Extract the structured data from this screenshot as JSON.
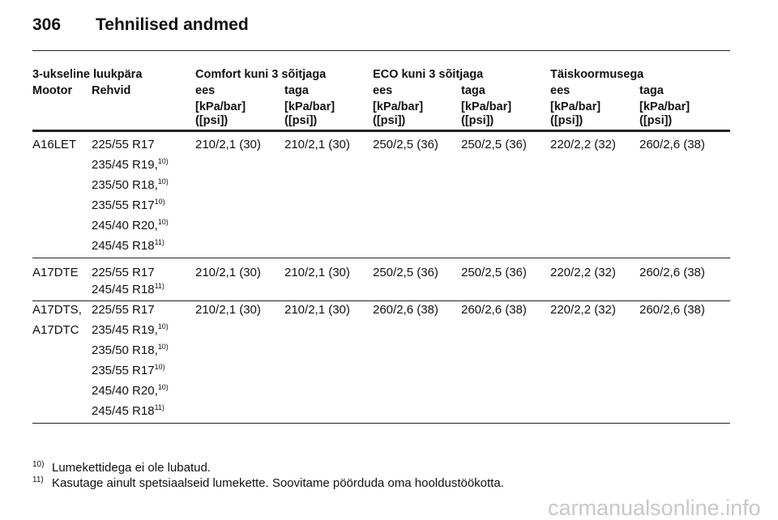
{
  "header": {
    "page_number": "306",
    "title": "Tehnilised andmed"
  },
  "table": {
    "group_headers": [
      "3-ukseline luukpära",
      "Comfort kuni 3 sõitjaga",
      "ECO kuni 3 sõitjaga",
      "Täiskoormusega"
    ],
    "columns": [
      "Mootor",
      "Rehvid",
      "ees",
      "taga",
      "ees",
      "taga",
      "ees",
      "taga"
    ],
    "units": [
      [
        "[kPa/bar]",
        "([psi])"
      ],
      [
        "[kPa/bar]",
        "([psi])"
      ],
      [
        "[kPa/bar]",
        "([psi])"
      ],
      [
        "[kPa/bar]",
        "([psi])"
      ],
      [
        "[kPa/bar]",
        "([psi])"
      ],
      [
        "[kPa/bar]",
        "([psi])"
      ]
    ],
    "groups": [
      {
        "engine": [
          "A16LET"
        ],
        "tires": [
          {
            "text": "225/55 R17"
          },
          {
            "text": "235/45 R19,",
            "note": "10)"
          },
          {
            "text": "235/50 R18,",
            "note": "10)"
          },
          {
            "text": "235/55 R17",
            "note": "10)"
          },
          {
            "text": "245/40 R20,",
            "note": "10)"
          },
          {
            "text": "245/45 R18",
            "note": "11)"
          }
        ],
        "pressures": [
          "210/2,1 (30)",
          "210/2,1 (30)",
          "250/2,5 (36)",
          "250/2,5 (36)",
          "220/2,2 (32)",
          "260/2,6 (38)"
        ]
      },
      {
        "engine": [
          "A17DTE"
        ],
        "tires": [
          {
            "text": "225/55 R17"
          },
          {
            "text": "245/45 R18",
            "note": "11)"
          }
        ],
        "pressures": [
          "210/2,1 (30)",
          "210/2,1 (30)",
          "250/2,5 (36)",
          "250/2,5 (36)",
          "220/2,2 (32)",
          "260/2,6 (38)"
        ]
      },
      {
        "engine": [
          "A17DTS,",
          "A17DTC"
        ],
        "tires": [
          {
            "text": "225/55 R17"
          },
          {
            "text": "235/45 R19,",
            "note": "10)"
          },
          {
            "text": "235/50 R18,",
            "note": "10)"
          },
          {
            "text": "235/55 R17",
            "note": "10)"
          },
          {
            "text": "245/40 R20,",
            "note": "10)"
          },
          {
            "text": "245/45 R18",
            "note": "11)"
          }
        ],
        "pressures": [
          "210/2,1 (30)",
          "210/2,1 (30)",
          "260/2,6 (38)",
          "260/2,6 (38)",
          "220/2,2 (32)",
          "260/2,6 (38)"
        ]
      }
    ]
  },
  "footnotes": [
    {
      "mark": "10)",
      "text": "Lumekettidega ei ole lubatud."
    },
    {
      "mark": "11)",
      "text": "Kasutage ainult spetsiaalseid lumekette. Soovitame pöörduda oma hooldustöökotta."
    }
  ],
  "watermark": "carmanualsonline.info"
}
